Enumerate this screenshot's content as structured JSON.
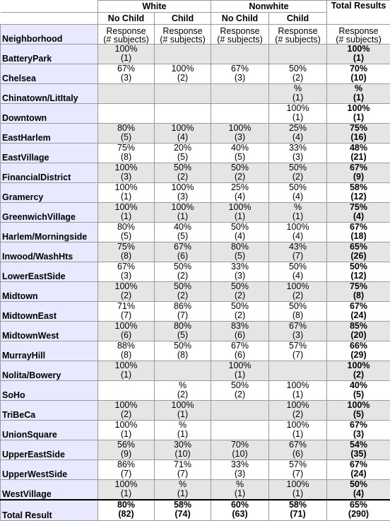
{
  "headers": {
    "white": "White",
    "nonwhite": "Nonwhite",
    "total_results": "Total Results",
    "no_child": "No Child",
    "child": "Child",
    "neighborhood": "Neighborhood",
    "response": "Response",
    "subjects": "(# subjects)"
  },
  "rows": [
    {
      "name": "BatteryPark",
      "c": [
        [
          "100%",
          "(1)"
        ],
        [
          "",
          ""
        ],
        [
          "",
          ""
        ],
        [
          "",
          ""
        ],
        [
          "100%",
          "(1)"
        ]
      ]
    },
    {
      "name": "Chelsea",
      "c": [
        [
          "67%",
          "(3)"
        ],
        [
          "100%",
          "(2)"
        ],
        [
          "67%",
          "(3)"
        ],
        [
          "50%",
          "(2)"
        ],
        [
          "70%",
          "(10)"
        ]
      ]
    },
    {
      "name": "Chinatown/LitItaly",
      "c": [
        [
          "",
          ""
        ],
        [
          "",
          ""
        ],
        [
          "",
          ""
        ],
        [
          "%",
          "(1)"
        ],
        [
          "%",
          "(1)"
        ]
      ]
    },
    {
      "name": "Downtown",
      "c": [
        [
          "",
          ""
        ],
        [
          "",
          ""
        ],
        [
          "",
          ""
        ],
        [
          "100%",
          "(1)"
        ],
        [
          "100%",
          "(1)"
        ]
      ]
    },
    {
      "name": "EastHarlem",
      "c": [
        [
          "80%",
          "(5)"
        ],
        [
          "100%",
          "(4)"
        ],
        [
          "100%",
          "(3)"
        ],
        [
          "25%",
          "(4)"
        ],
        [
          "75%",
          "(16)"
        ]
      ]
    },
    {
      "name": "EastVillage",
      "c": [
        [
          "75%",
          "(8)"
        ],
        [
          "20%",
          "(5)"
        ],
        [
          "40%",
          "(5)"
        ],
        [
          "33%",
          "(3)"
        ],
        [
          "48%",
          "(21)"
        ]
      ]
    },
    {
      "name": "FinancialDistrict",
      "c": [
        [
          "100%",
          "(3)"
        ],
        [
          "50%",
          "(2)"
        ],
        [
          "50%",
          "(2)"
        ],
        [
          "50%",
          "(2)"
        ],
        [
          "67%",
          "(9)"
        ]
      ]
    },
    {
      "name": "Gramercy",
      "c": [
        [
          "100%",
          "(1)"
        ],
        [
          "100%",
          "(3)"
        ],
        [
          "25%",
          "(4)"
        ],
        [
          "50%",
          "(4)"
        ],
        [
          "58%",
          "(12)"
        ]
      ]
    },
    {
      "name": "GreenwichVillage",
      "c": [
        [
          "100%",
          "(1)"
        ],
        [
          "100%",
          "(1)"
        ],
        [
          "100%",
          "(1)"
        ],
        [
          "%",
          "(1)"
        ],
        [
          "75%",
          "(4)"
        ]
      ]
    },
    {
      "name": "Harlem/Morningside",
      "c": [
        [
          "80%",
          "(5)"
        ],
        [
          "40%",
          "(5)"
        ],
        [
          "50%",
          "(4)"
        ],
        [
          "100%",
          "(4)"
        ],
        [
          "67%",
          "(18)"
        ]
      ]
    },
    {
      "name": "Inwood/WashHts",
      "c": [
        [
          "75%",
          "(8)"
        ],
        [
          "67%",
          "(6)"
        ],
        [
          "80%",
          "(5)"
        ],
        [
          "43%",
          "(7)"
        ],
        [
          "65%",
          "(26)"
        ]
      ]
    },
    {
      "name": "LowerEastSide",
      "c": [
        [
          "67%",
          "(3)"
        ],
        [
          "50%",
          "(2)"
        ],
        [
          "33%",
          "(3)"
        ],
        [
          "50%",
          "(4)"
        ],
        [
          "50%",
          "(12)"
        ]
      ]
    },
    {
      "name": "Midtown",
      "c": [
        [
          "100%",
          "(2)"
        ],
        [
          "50%",
          "(2)"
        ],
        [
          "50%",
          "(2)"
        ],
        [
          "100%",
          "(2)"
        ],
        [
          "75%",
          "(8)"
        ]
      ]
    },
    {
      "name": "MidtownEast",
      "c": [
        [
          "71%",
          "(7)"
        ],
        [
          "86%",
          "(7)"
        ],
        [
          "50%",
          "(2)"
        ],
        [
          "50%",
          "(8)"
        ],
        [
          "67%",
          "(24)"
        ]
      ]
    },
    {
      "name": "MidtownWest",
      "c": [
        [
          "100%",
          "(6)"
        ],
        [
          "80%",
          "(5)"
        ],
        [
          "83%",
          "(6)"
        ],
        [
          "67%",
          "(3)"
        ],
        [
          "85%",
          "(20)"
        ]
      ]
    },
    {
      "name": "MurrayHill",
      "c": [
        [
          "88%",
          "(8)"
        ],
        [
          "50%",
          "(8)"
        ],
        [
          "67%",
          "(6)"
        ],
        [
          "57%",
          "(7)"
        ],
        [
          "66%",
          "(29)"
        ]
      ]
    },
    {
      "name": "Nolita/Bowery",
      "c": [
        [
          "100%",
          "(1)"
        ],
        [
          "",
          ""
        ],
        [
          "100%",
          "(1)"
        ],
        [
          "",
          ""
        ],
        [
          "100%",
          "(2)"
        ]
      ]
    },
    {
      "name": "SoHo",
      "c": [
        [
          "",
          ""
        ],
        [
          "%",
          "(2)"
        ],
        [
          "50%",
          "(2)"
        ],
        [
          "100%",
          "(1)"
        ],
        [
          "40%",
          "(5)"
        ]
      ]
    },
    {
      "name": "TriBeCa",
      "c": [
        [
          "100%",
          "(2)"
        ],
        [
          "100%",
          "(1)"
        ],
        [
          "",
          ""
        ],
        [
          "100%",
          "(2)"
        ],
        [
          "100%",
          "(5)"
        ]
      ]
    },
    {
      "name": "UnionSquare",
      "c": [
        [
          "100%",
          "(1)"
        ],
        [
          "%",
          "(1)"
        ],
        [
          "",
          ""
        ],
        [
          "100%",
          "(1)"
        ],
        [
          "67%",
          "(3)"
        ]
      ]
    },
    {
      "name": "UpperEastSide",
      "c": [
        [
          "56%",
          "(9)"
        ],
        [
          "30%",
          "(10)"
        ],
        [
          "70%",
          "(10)"
        ],
        [
          "67%",
          "(6)"
        ],
        [
          "54%",
          "(35)"
        ]
      ]
    },
    {
      "name": "UpperWestSide",
      "c": [
        [
          "86%",
          "(7)"
        ],
        [
          "71%",
          "(7)"
        ],
        [
          "33%",
          "(3)"
        ],
        [
          "57%",
          "(7)"
        ],
        [
          "67%",
          "(24)"
        ]
      ]
    },
    {
      "name": "WestVillage",
      "c": [
        [
          "100%",
          "(1)"
        ],
        [
          "%",
          "(1)"
        ],
        [
          "%",
          "(1)"
        ],
        [
          "100%",
          "(1)"
        ],
        [
          "50%",
          "(4)"
        ]
      ]
    }
  ],
  "total_row": {
    "name": "Total Result",
    "c": [
      [
        "80%",
        "(82)"
      ],
      [
        "58%",
        "(74)"
      ],
      [
        "60%",
        "(63)"
      ],
      [
        "58%",
        "(71)"
      ],
      [
        "65%",
        "(290)"
      ]
    ]
  }
}
